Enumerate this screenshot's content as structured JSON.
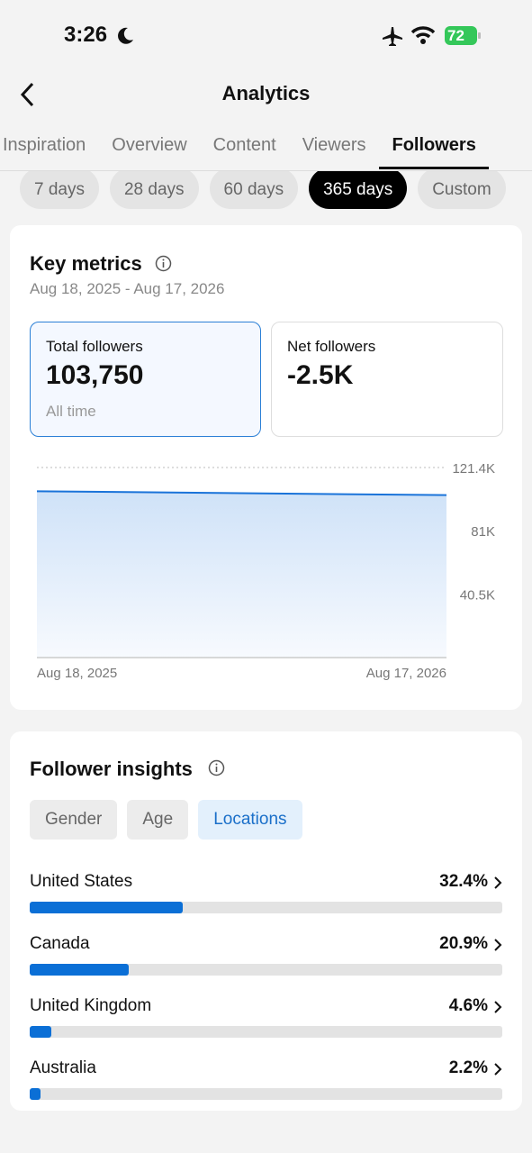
{
  "status": {
    "time": "3:26",
    "battery": "72"
  },
  "header": {
    "title": "Analytics"
  },
  "tabs": [
    "Inspiration",
    "Overview",
    "Content",
    "Viewers",
    "Followers"
  ],
  "active_tab": 4,
  "ranges": [
    "7 days",
    "28 days",
    "60 days",
    "365 days",
    "Custom"
  ],
  "active_range": 3,
  "key_metrics": {
    "title": "Key metrics",
    "date_range": "Aug 18, 2025 - Aug 17, 2026",
    "cards": [
      {
        "label": "Total followers",
        "value": "103,750",
        "note": "All time"
      },
      {
        "label": "Net followers",
        "value": "-2.5K"
      }
    ]
  },
  "insights": {
    "title": "Follower insights",
    "filters": [
      "Gender",
      "Age",
      "Locations"
    ],
    "active_filter": 2
  },
  "chart_data": [
    {
      "type": "line",
      "x": [
        "Aug 18, 2025",
        "Aug 17, 2026"
      ],
      "values": [
        106250,
        103750
      ],
      "color": "#1a73d9",
      "ylim": [
        0,
        121400
      ],
      "yticks": [
        {
          "value": 121400,
          "label": "121.4K"
        },
        {
          "value": 81000,
          "label": "81K"
        },
        {
          "value": 40500,
          "label": "40.5K"
        }
      ],
      "grid": true
    },
    {
      "type": "hbar",
      "categories": [
        "United States",
        "Canada",
        "United Kingdom",
        "Australia"
      ],
      "values": [
        32.4,
        20.9,
        4.6,
        2.2
      ],
      "value_labels": [
        "32.4%",
        "20.9%",
        "4.6%",
        "2.2%"
      ],
      "xlim": [
        0,
        100
      ],
      "color": "#0b6fd6"
    }
  ]
}
